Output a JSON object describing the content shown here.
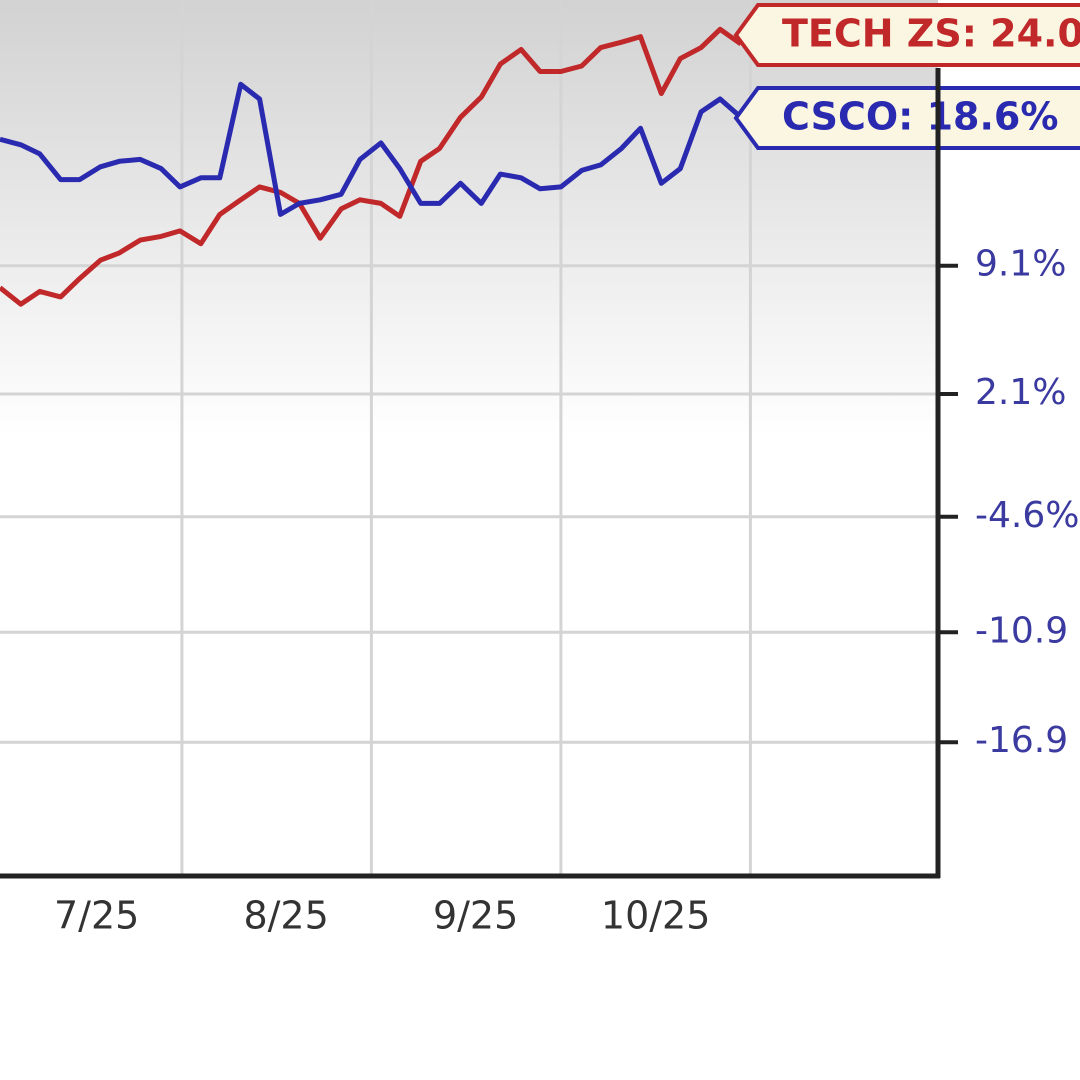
{
  "chart_data": {
    "type": "line",
    "x": [
      7.04,
      7.15,
      7.25,
      7.36,
      7.46,
      7.57,
      7.67,
      7.78,
      7.89,
      7.99,
      8.1,
      8.2,
      8.31,
      8.41,
      8.52,
      8.62,
      8.73,
      8.84,
      8.94,
      9.05,
      9.15,
      9.26,
      9.36,
      9.47,
      9.58,
      9.68,
      9.79,
      9.89,
      10.0,
      10.11,
      10.21,
      10.32,
      10.42,
      10.53,
      10.63,
      10.74,
      10.84,
      10.95
    ],
    "series": [
      {
        "label": "TECH ZS: 24.0",
        "color": "#c0282a",
        "values": [
          7.9,
          7.0,
          7.7,
          7.4,
          8.4,
          9.4,
          9.8,
          10.5,
          10.7,
          11.0,
          10.3,
          11.9,
          12.7,
          13.4,
          13.1,
          12.5,
          10.6,
          12.2,
          12.7,
          12.5,
          11.8,
          14.8,
          15.5,
          17.2,
          18.3,
          20.1,
          20.9,
          19.7,
          19.7,
          20.0,
          21.0,
          21.3,
          21.6,
          18.5,
          20.4,
          21.0,
          22.0,
          21.2
        ]
      },
      {
        "label": "CSCO: 18.6%",
        "color": "#2a2ab0",
        "values": [
          16.0,
          15.7,
          15.2,
          13.8,
          13.8,
          14.5,
          14.8,
          14.9,
          14.4,
          13.4,
          13.9,
          13.9,
          19.0,
          18.2,
          11.9,
          12.5,
          12.7,
          13.0,
          14.9,
          15.8,
          14.4,
          12.5,
          12.5,
          13.6,
          12.5,
          14.1,
          13.9,
          13.3,
          13.4,
          14.3,
          14.6,
          15.5,
          16.6,
          13.6,
          14.4,
          17.5,
          18.2,
          17.2
        ]
      }
    ],
    "xlim": [
      7.04,
      11.99
    ],
    "xticks": [
      {
        "value": 7.55,
        "label": "7/25"
      },
      {
        "value": 8.55,
        "label": "8/25"
      },
      {
        "value": 9.55,
        "label": "9/25"
      },
      {
        "value": 10.5,
        "label": "10/25"
      }
    ],
    "xgrid": [
      8,
      9,
      10,
      11
    ],
    "ylim": [
      -24.2,
      23.6
    ],
    "yticks": [
      {
        "value": 9.1,
        "label": "9.1%"
      },
      {
        "value": 2.1,
        "label": "2.1%"
      },
      {
        "value": -4.6,
        "label": "-4.6%"
      },
      -10.9,
      -16.9
    ],
    "grid": true
  }
}
